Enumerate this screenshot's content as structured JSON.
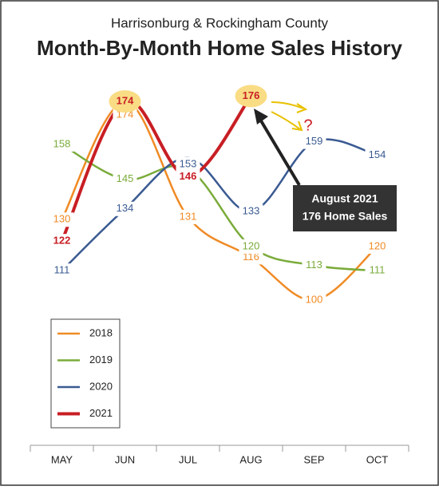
{
  "chart_data": {
    "type": "line",
    "subtitle": "Harrisonburg & Rockingham County",
    "title": "Month-By-Month Home Sales History",
    "categories": [
      "MAY",
      "JUN",
      "JUL",
      "AUG",
      "SEP",
      "OCT"
    ],
    "series": [
      {
        "name": "2018",
        "color": "#f08a24",
        "values": [
          130,
          174,
          131,
          116,
          100,
          120
        ]
      },
      {
        "name": "2019",
        "color": "#7aab3a",
        "values": [
          158,
          145,
          149,
          120,
          113,
          111
        ]
      },
      {
        "name": "2020",
        "color": "#3a5a92",
        "values": [
          111,
          134,
          153,
          133,
          159,
          154
        ]
      },
      {
        "name": "2021",
        "color": "#c81e24",
        "values": [
          122,
          174,
          146,
          176,
          null,
          null
        ]
      }
    ],
    "ylim": [
      46,
      188
    ],
    "annotation": {
      "lines": [
        "August 2021",
        "176 Home Sales"
      ]
    },
    "question": "?"
  }
}
